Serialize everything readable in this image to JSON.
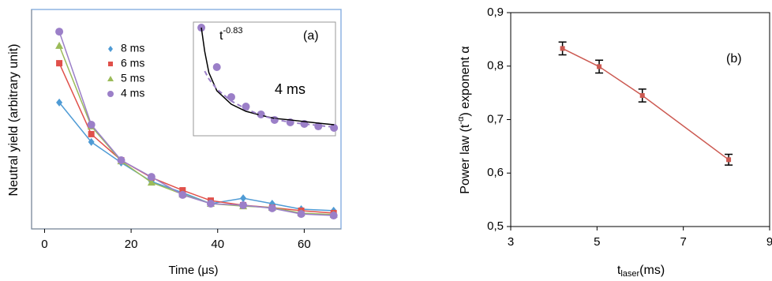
{
  "chart_data": [
    {
      "type": "line",
      "xlabel": "Time (μs)",
      "ylabel": "Neutral yield (arbitrary unit)",
      "x": [
        3.4,
        10.8,
        17.7,
        24.7,
        31.9,
        38.4,
        45.9,
        52.6,
        59.3,
        66.8
      ],
      "xlim": [
        -3,
        68.5
      ],
      "ylim": [
        0,
        1
      ],
      "xticks": [
        0,
        20,
        40,
        60
      ],
      "legend": "upper center",
      "annotations": [
        "(a)"
      ],
      "series": [
        {
          "name": "8 ms",
          "color": "#4f9bd5",
          "marker": "diamond",
          "values": [
            0.576,
            0.396,
            0.302,
            0.216,
            0.165,
            0.115,
            0.14,
            0.115,
            0.09,
            0.083
          ]
        },
        {
          "name": "6 ms",
          "color": "#e0504a",
          "marker": "square",
          "values": [
            0.755,
            0.432,
            0.313,
            0.234,
            0.176,
            0.129,
            0.108,
            0.097,
            0.083,
            0.072
          ]
        },
        {
          "name": "5 ms",
          "color": "#9bbb59",
          "marker": "triangle",
          "values": [
            0.835,
            0.468,
            0.309,
            0.212,
            0.158,
            0.115,
            0.104,
            0.097,
            0.072,
            0.065
          ]
        },
        {
          "name": "4 ms",
          "color": "#9b7fc8",
          "marker": "circle",
          "values": [
            0.899,
            0.475,
            0.313,
            0.237,
            0.155,
            0.115,
            0.108,
            0.094,
            0.068,
            0.061
          ]
        }
      ]
    },
    {
      "type": "line",
      "x": [
        3.4,
        5,
        7,
        10.8,
        17.7,
        24.7,
        31.9,
        38.4,
        45.9,
        52.6,
        59.3,
        66.8
      ],
      "xlim": [
        -0.4,
        67.5
      ],
      "ylim": [
        0,
        1
      ],
      "annotations": [
        {
          "text": "t",
          "superscript": "-0.83"
        },
        {
          "text": "4 ms"
        }
      ],
      "series": [
        {
          "color": "#9b7fc8",
          "marker": "circle",
          "line": false,
          "values": [
            0.964,
            null,
            null,
            0.607,
            0.336,
            0.25,
            0.179,
            0.129,
            0.107,
            0.093,
            0.071,
            0.057
          ]
        },
        {
          "color": "#000000",
          "values": [
            0.964,
            0.75,
            0.557,
            0.393,
            0.271,
            0.207,
            0.171,
            0.143,
            0.129,
            0.114,
            0.1,
            0.086
          ]
        },
        {
          "color": "#9b7fc8",
          "dash": true,
          "values": [
            null,
            0.571,
            0.5,
            0.407,
            0.3,
            0.229,
            0.171,
            0.136,
            0.107,
            0.093,
            0.079,
            0.064
          ]
        }
      ]
    },
    {
      "type": "line",
      "xlabel": {
        "base": "t",
        "subscript": "laser",
        "rest": "(ms)"
      },
      "ylabel": {
        "before": "Power law (t",
        "superscript": "-α",
        "after": ") exponent α"
      },
      "x": [
        4.2,
        5.05,
        6.05,
        8.05
      ],
      "values": [
        0.833,
        0.799,
        0.745,
        0.625
      ],
      "errors": [
        0.012,
        0.012,
        0.012,
        0.01
      ],
      "color": "#cc5a52",
      "marker": "square",
      "xlim": [
        3,
        9
      ],
      "ylim": [
        0.5,
        0.9
      ],
      "xticks": [
        3,
        5,
        7,
        9
      ],
      "yticks": [
        {
          "value": 0.5,
          "label": "0,5"
        },
        {
          "value": 0.6,
          "label": "0,6"
        },
        {
          "value": 0.7,
          "label": "0,7"
        },
        {
          "value": 0.8,
          "label": "0,8"
        },
        {
          "value": 0.9,
          "label": "0,9"
        }
      ],
      "annotations": [
        "(b)"
      ]
    }
  ]
}
